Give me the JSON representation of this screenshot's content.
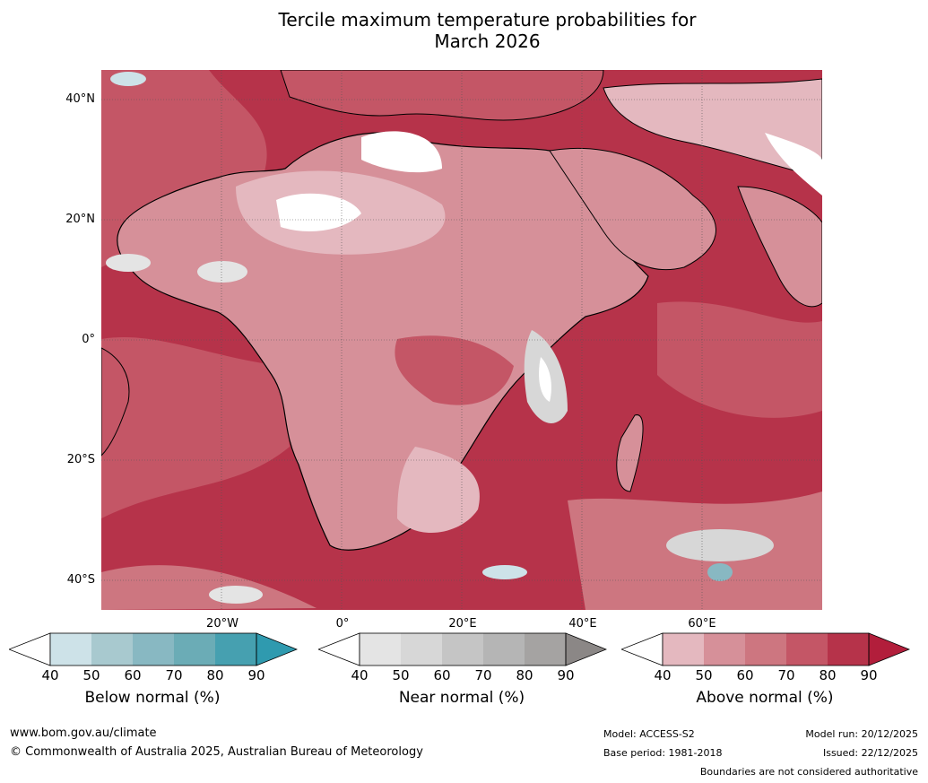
{
  "title_line1": "Tercile maximum temperature probabilities for",
  "title_line2": "March 2026",
  "lat_labels": [
    "40°N",
    "20°N",
    "0°",
    "20°S",
    "40°S"
  ],
  "lon_labels": [
    "20°W",
    "0°",
    "20°E",
    "40°E",
    "60°E"
  ],
  "colorbars": [
    {
      "label": "Below normal (%)",
      "ticks": [
        "40",
        "50",
        "60",
        "70",
        "80",
        "90"
      ],
      "colors": [
        "#ffffff",
        "#cde2e8",
        "#a8c9cf",
        "#88b8c2",
        "#6bacb6",
        "#46a0b0",
        "#2f9aaf"
      ]
    },
    {
      "label": "Near normal (%)",
      "ticks": [
        "40",
        "50",
        "60",
        "70",
        "80",
        "90"
      ],
      "colors": [
        "#ffffff",
        "#e4e4e4",
        "#d7d7d7",
        "#c5c5c5",
        "#b5b5b5",
        "#a5a3a2",
        "#8b8786"
      ]
    },
    {
      "label": "Above normal (%)",
      "ticks": [
        "40",
        "50",
        "60",
        "70",
        "80",
        "90"
      ],
      "colors": [
        "#ffffff",
        "#e4b8bf",
        "#d69099",
        "#cd7680",
        "#c45666",
        "#b6334a",
        "#b21e3b"
      ]
    }
  ],
  "footer": {
    "website": "www.bom.gov.au/climate",
    "copyright": "© Commonwealth of Australia 2025, Australian Bureau of Meteorology",
    "model": "Model: ACCESS-S2",
    "base_period": "Base period: 1981-2018",
    "model_run": "Model run: 20/12/2025",
    "issued": "Issued: 22/12/2025",
    "disclaimer": "Boundaries are not considered authoritative"
  }
}
